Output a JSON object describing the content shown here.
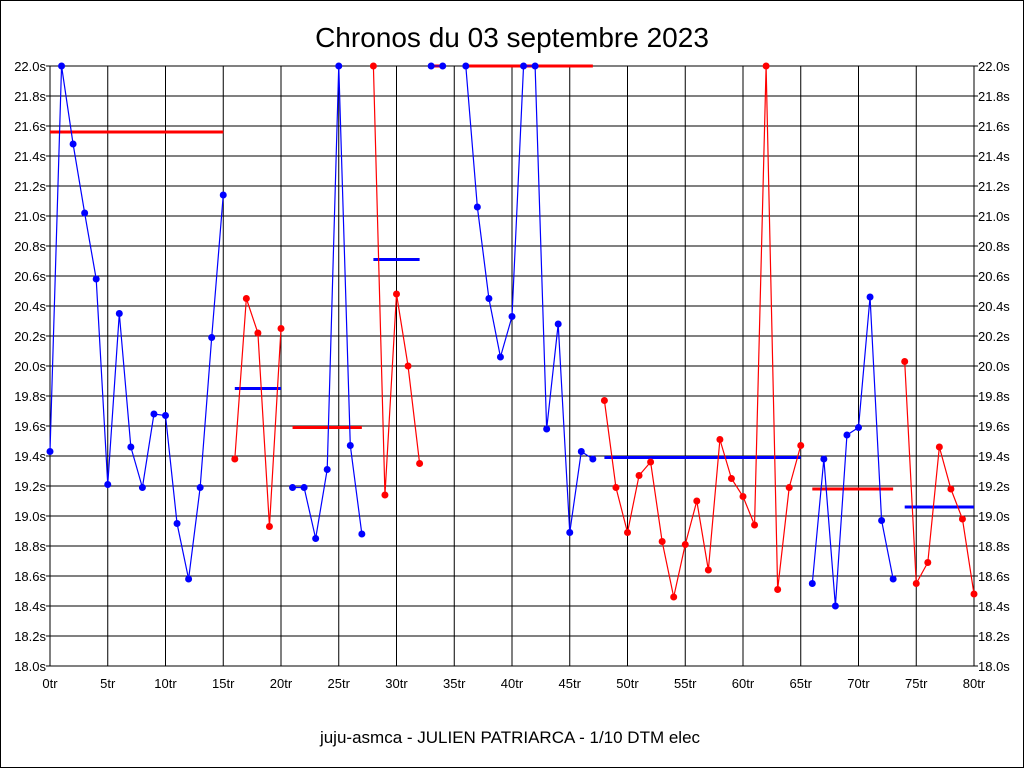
{
  "chart_data": {
    "type": "line",
    "title": "Chronos du 03 septembre 2023",
    "footer": "juju-asmca - JULIEN PATRIARCA - 1/10 DTM elec",
    "xlim": [
      0,
      80
    ],
    "ylim": [
      18.0,
      22.0
    ],
    "grid": true,
    "x_ticks": [
      0,
      5,
      10,
      15,
      20,
      25,
      30,
      35,
      40,
      45,
      50,
      55,
      60,
      65,
      70,
      75,
      80
    ],
    "x_tick_labels": [
      "0tr",
      "5tr",
      "10tr",
      "15tr",
      "20tr",
      "25tr",
      "30tr",
      "35tr",
      "40tr",
      "45tr",
      "50tr",
      "55tr",
      "60tr",
      "65tr",
      "70tr",
      "75tr",
      "80tr"
    ],
    "y_ticks": [
      18.0,
      18.2,
      18.4,
      18.6,
      18.8,
      19.0,
      19.2,
      19.4,
      19.6,
      19.8,
      20.0,
      20.2,
      20.4,
      20.6,
      20.8,
      21.0,
      21.2,
      21.4,
      21.6,
      21.8,
      22.0
    ],
    "y_tick_labels": [
      "18.0s",
      "18.2s",
      "18.4s",
      "18.6s",
      "18.8s",
      "19.0s",
      "19.2s",
      "19.4s",
      "19.6s",
      "19.8s",
      "20.0s",
      "20.2s",
      "20.4s",
      "20.6s",
      "20.8s",
      "21.0s",
      "21.2s",
      "21.4s",
      "21.6s",
      "21.8s",
      "22.0s"
    ],
    "colors": {
      "blue": "#0000ff",
      "red": "#ff0000",
      "grid": "#000000"
    },
    "stints": [
      {
        "color": "#0000ff",
        "avg_color": "#ff0000",
        "average": 21.56,
        "laps": [
          0,
          1,
          2,
          3,
          4,
          5,
          6,
          7,
          8,
          9,
          10,
          11,
          12,
          13,
          14,
          15
        ],
        "times": [
          19.43,
          22.0,
          21.48,
          21.02,
          20.58,
          19.21,
          20.35,
          19.46,
          19.19,
          19.68,
          19.67,
          18.95,
          18.58,
          19.19,
          20.19,
          21.14
        ]
      },
      {
        "color": "#ff0000",
        "avg_color": "#0000ff",
        "average": 19.85,
        "laps": [
          16,
          17,
          18,
          19,
          20
        ],
        "times": [
          19.38,
          20.45,
          20.22,
          18.93,
          20.25
        ]
      },
      {
        "color": "#0000ff",
        "avg_color": "#ff0000",
        "average": 19.59,
        "laps": [
          21,
          22,
          23,
          24,
          25,
          26,
          27
        ],
        "times": [
          19.19,
          19.19,
          18.85,
          19.31,
          22.0,
          19.47,
          18.88
        ]
      },
      {
        "color": "#ff0000",
        "avg_color": "#0000ff",
        "average": 20.71,
        "laps": [
          28,
          29,
          30,
          31,
          32
        ],
        "times": [
          22.0,
          19.14,
          20.48,
          20.0,
          19.35
        ]
      },
      {
        "color": "#0000ff",
        "avg_color": "#ff0000",
        "average": 22.0,
        "laps": [
          33,
          34
        ],
        "times": [
          22.0,
          22.0
        ]
      },
      {
        "color": "#0000ff",
        "avg_color": "#ff0000",
        "average": 22.0,
        "laps": [
          36,
          37,
          38,
          39,
          40,
          41,
          42,
          43,
          44,
          45,
          46,
          47
        ],
        "times": [
          22.0,
          21.06,
          20.45,
          20.06,
          20.33,
          22.0,
          22.0,
          19.58,
          20.28,
          18.89,
          19.43,
          19.38
        ]
      },
      {
        "color": "#ff0000",
        "avg_color": "#0000ff",
        "average": 19.39,
        "laps": [
          48,
          49,
          50,
          51,
          52,
          53,
          54,
          55,
          56,
          57,
          58,
          59,
          60,
          61,
          62,
          63,
          64,
          65
        ],
        "times": [
          19.77,
          19.19,
          18.89,
          19.27,
          19.36,
          18.83,
          18.46,
          18.81,
          19.1,
          18.64,
          19.51,
          19.25,
          19.13,
          18.94,
          22.0,
          18.51,
          19.19,
          19.47
        ]
      },
      {
        "color": "#0000ff",
        "avg_color": "#ff0000",
        "average": 19.18,
        "laps": [
          66,
          67,
          68,
          69,
          70,
          71,
          72,
          73
        ],
        "times": [
          18.55,
          19.38,
          18.4,
          19.54,
          19.59,
          20.46,
          18.97,
          18.58
        ]
      },
      {
        "color": "#ff0000",
        "avg_color": "#0000ff",
        "average": 19.06,
        "laps": [
          74,
          75,
          76,
          77,
          78,
          79,
          80
        ],
        "times": [
          20.03,
          18.55,
          18.69,
          19.46,
          19.18,
          18.98,
          18.48
        ]
      }
    ]
  }
}
